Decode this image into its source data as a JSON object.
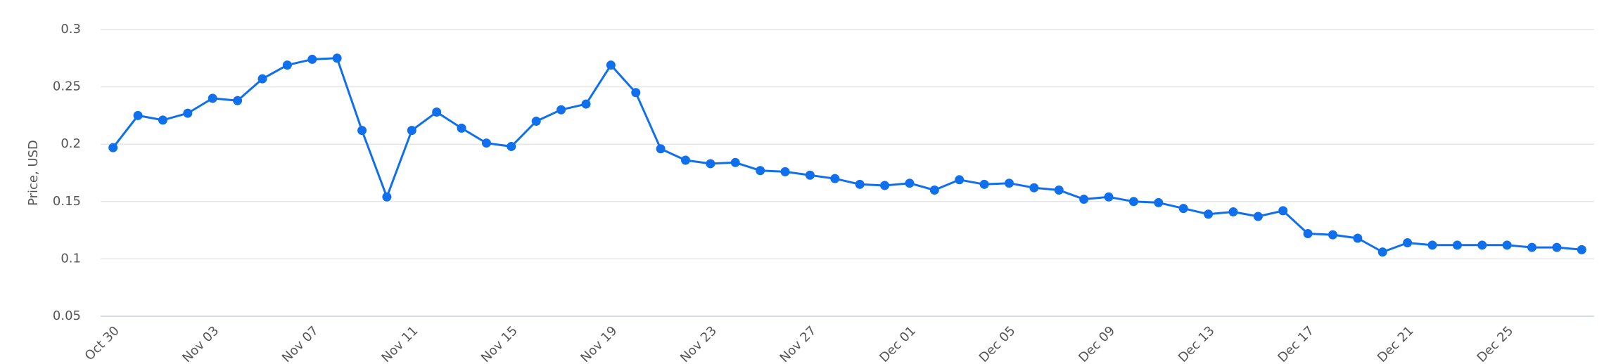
{
  "chart_data": {
    "type": "line",
    "y_label": "Price, USD",
    "categories": [
      "Oct 30",
      null,
      null,
      null,
      "Nov 03",
      null,
      null,
      null,
      "Nov 07",
      null,
      null,
      null,
      "Nov 11",
      null,
      null,
      null,
      "Nov 15",
      null,
      null,
      null,
      "Nov 19",
      null,
      null,
      null,
      "Nov 23",
      null,
      null,
      null,
      "Nov 27",
      null,
      null,
      null,
      "Dec 01",
      null,
      null,
      null,
      "Dec 05",
      null,
      null,
      null,
      "Dec 09",
      null,
      null,
      null,
      "Dec 13",
      null,
      null,
      null,
      "Dec 17",
      null,
      null,
      null,
      "Dec 21",
      null,
      null,
      null,
      "Dec 25",
      null,
      null,
      null
    ],
    "series": [
      {
        "name": "Price",
        "color": "#0f6fec",
        "values": [
          0.197,
          0.225,
          0.221,
          0.227,
          0.24,
          0.238,
          0.257,
          0.269,
          0.274,
          0.275,
          0.212,
          0.154,
          0.212,
          0.228,
          0.214,
          0.201,
          0.198,
          0.22,
          0.23,
          0.235,
          0.269,
          0.245,
          0.196,
          0.186,
          0.183,
          0.184,
          0.177,
          0.176,
          0.173,
          0.17,
          0.165,
          0.164,
          0.166,
          0.16,
          0.169,
          0.165,
          0.166,
          0.162,
          0.16,
          0.152,
          0.154,
          0.15,
          0.149,
          0.144,
          0.139,
          0.141,
          0.137,
          0.142,
          0.122,
          0.121,
          0.118,
          0.106,
          0.114,
          0.112,
          0.112,
          0.112,
          0.112,
          0.11,
          0.11,
          0.108
        ]
      }
    ],
    "ylim": [
      0.05,
      0.3
    ],
    "yticks": [
      0.05,
      0.1,
      0.15,
      0.2,
      0.25,
      0.3
    ],
    "grid": true
  }
}
